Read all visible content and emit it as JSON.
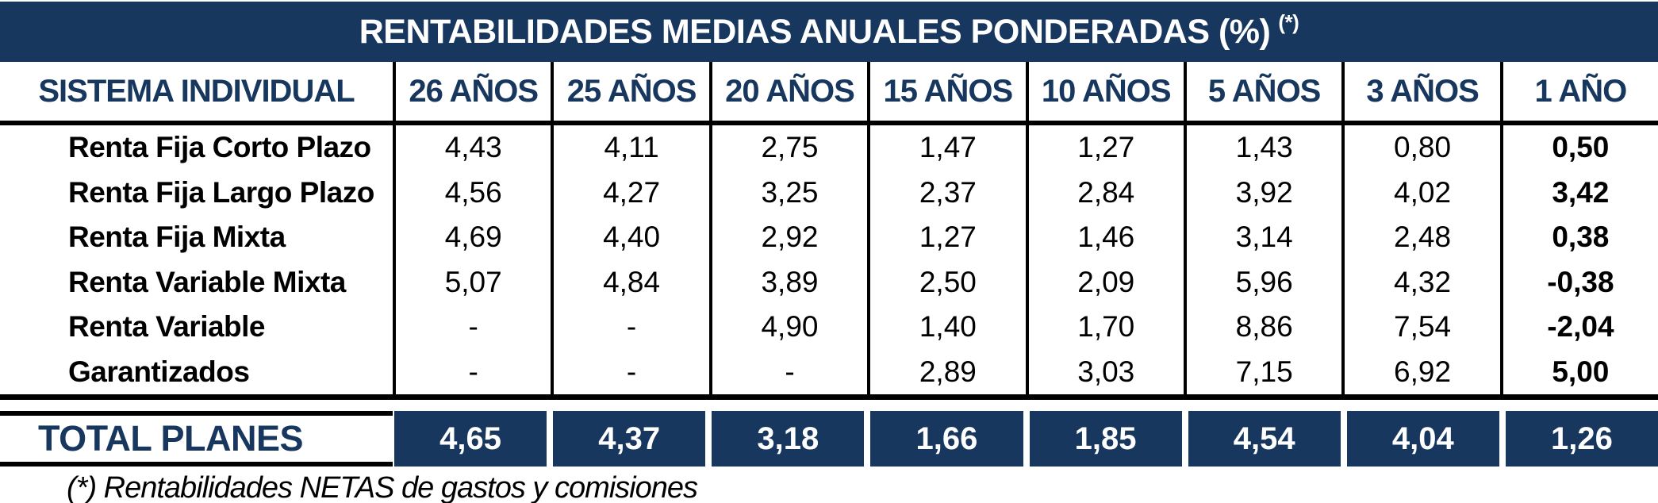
{
  "title": {
    "text": "RENTABILIDADES MEDIAS ANUALES PONDERADAS (%)",
    "superscript": "(*)"
  },
  "columns": [
    "SISTEMA INDIVIDUAL",
    "26 AÑOS",
    "25 AÑOS",
    "20 AÑOS",
    "15 AÑOS",
    "10 AÑOS",
    "5 AÑOS",
    "3 AÑOS",
    "1 AÑO"
  ],
  "rows": [
    {
      "label": "Renta Fija Corto Plazo",
      "values": [
        "4,43",
        "4,11",
        "2,75",
        "1,47",
        "1,27",
        "1,43",
        "0,80",
        "0,50"
      ]
    },
    {
      "label": "Renta Fija Largo Plazo",
      "values": [
        "4,56",
        "4,27",
        "3,25",
        "2,37",
        "2,84",
        "3,92",
        "4,02",
        "3,42"
      ]
    },
    {
      "label": "Renta Fija Mixta",
      "values": [
        "4,69",
        "4,40",
        "2,92",
        "1,27",
        "1,46",
        "3,14",
        "2,48",
        "0,38"
      ]
    },
    {
      "label": "Renta Variable Mixta",
      "values": [
        "5,07",
        "4,84",
        "3,89",
        "2,50",
        "2,09",
        "5,96",
        "4,32",
        "-0,38"
      ]
    },
    {
      "label": "Renta Variable",
      "values": [
        "-",
        "-",
        "4,90",
        "1,40",
        "1,70",
        "8,86",
        "7,54",
        "-2,04"
      ]
    },
    {
      "label": "Garantizados",
      "values": [
        "-",
        "-",
        "-",
        "2,89",
        "3,03",
        "7,15",
        "6,92",
        "5,00"
      ]
    }
  ],
  "total": {
    "label": "TOTAL PLANES",
    "values": [
      "4,65",
      "4,37",
      "3,18",
      "1,66",
      "1,85",
      "4,54",
      "4,04",
      "1,26"
    ]
  },
  "footnote": "(*) Rentabilidades NETAS de gastos y comisiones",
  "colors": {
    "navy": "#17375E",
    "header_text": "#17375E",
    "line_black": "#000000",
    "total_value_text": "#ffffff"
  }
}
